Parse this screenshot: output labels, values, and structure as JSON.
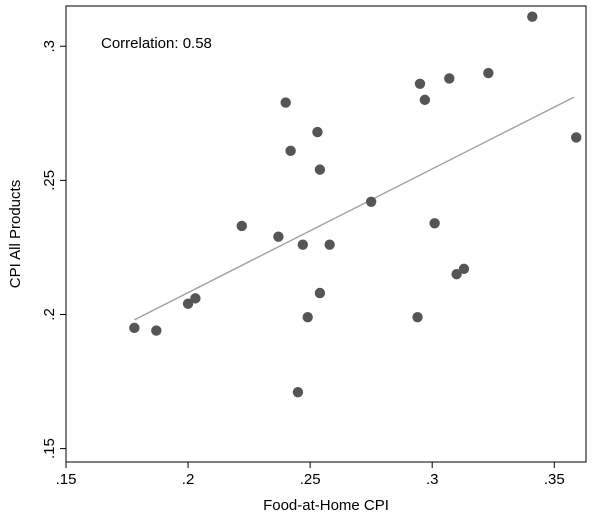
{
  "chart_data": {
    "type": "scatter",
    "xlabel": "Food-at-Home CPI",
    "ylabel": "CPI All Products",
    "xlim": [
      0.15,
      0.363
    ],
    "ylim": [
      0.145,
      0.315
    ],
    "x_ticks": [
      0.15,
      0.2,
      0.25,
      0.3,
      0.35
    ],
    "x_tick_labels": [
      ".15",
      ".2",
      ".25",
      ".3",
      ".35"
    ],
    "y_ticks": [
      0.15,
      0.2,
      0.25,
      0.3
    ],
    "y_tick_labels": [
      ".15",
      ".2",
      ".25",
      ".3"
    ],
    "annotation": "Correlation: 0.58",
    "grid": false,
    "legend": "none",
    "point_color": "#555555",
    "fit_line_color": "#a0a0a0",
    "points": [
      {
        "x": 0.178,
        "y": 0.195
      },
      {
        "x": 0.187,
        "y": 0.194
      },
      {
        "x": 0.2,
        "y": 0.204
      },
      {
        "x": 0.203,
        "y": 0.206
      },
      {
        "x": 0.222,
        "y": 0.233
      },
      {
        "x": 0.237,
        "y": 0.229
      },
      {
        "x": 0.24,
        "y": 0.279
      },
      {
        "x": 0.242,
        "y": 0.261
      },
      {
        "x": 0.245,
        "y": 0.171
      },
      {
        "x": 0.247,
        "y": 0.226
      },
      {
        "x": 0.249,
        "y": 0.199
      },
      {
        "x": 0.253,
        "y": 0.268
      },
      {
        "x": 0.254,
        "y": 0.254
      },
      {
        "x": 0.254,
        "y": 0.208
      },
      {
        "x": 0.258,
        "y": 0.226
      },
      {
        "x": 0.275,
        "y": 0.242
      },
      {
        "x": 0.294,
        "y": 0.199
      },
      {
        "x": 0.295,
        "y": 0.286
      },
      {
        "x": 0.297,
        "y": 0.28
      },
      {
        "x": 0.301,
        "y": 0.234
      },
      {
        "x": 0.307,
        "y": 0.288
      },
      {
        "x": 0.31,
        "y": 0.215
      },
      {
        "x": 0.313,
        "y": 0.217
      },
      {
        "x": 0.323,
        "y": 0.29
      },
      {
        "x": 0.341,
        "y": 0.311
      },
      {
        "x": 0.359,
        "y": 0.266
      }
    ],
    "fit_line": {
      "x": [
        0.178,
        0.358
      ],
      "y": [
        0.198,
        0.281
      ]
    }
  }
}
